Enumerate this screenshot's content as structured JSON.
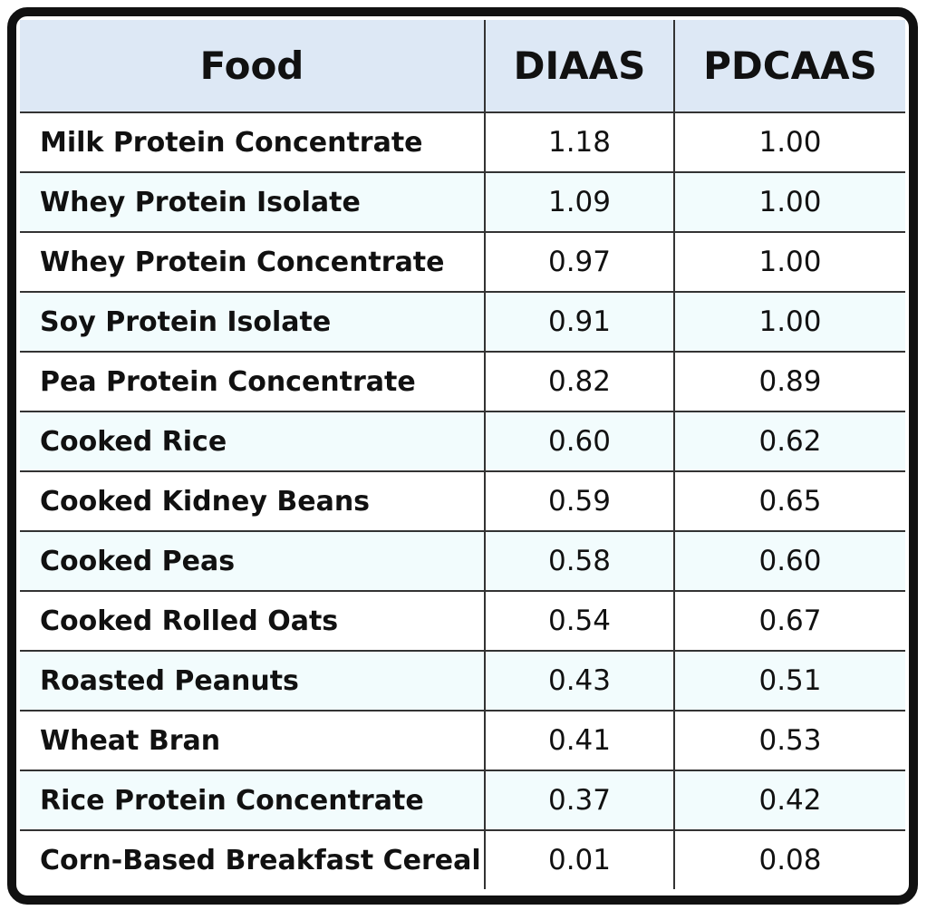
{
  "table": {
    "header": [
      "Food",
      "DIAAS",
      "PDCAAS"
    ],
    "rows": [
      [
        "Milk Protein Concentrate",
        "1.18",
        "1.00"
      ],
      [
        "Whey Protein Isolate",
        "1.09",
        "1.00"
      ],
      [
        "Whey Protein Concentrate",
        "0.97",
        "1.00"
      ],
      [
        "Soy Protein Isolate",
        "0.91",
        "1.00"
      ],
      [
        "Pea Protein Concentrate",
        "0.82",
        "0.89"
      ],
      [
        "Cooked Rice",
        "0.60",
        "0.62"
      ],
      [
        "Cooked Kidney Beans",
        "0.59",
        "0.65"
      ],
      [
        "Cooked Peas",
        "0.58",
        "0.60"
      ],
      [
        "Cooked Rolled Oats",
        "0.54",
        "0.67"
      ],
      [
        "Roasted Peanuts",
        "0.43",
        "0.51"
      ],
      [
        "Wheat Bran",
        "0.41",
        "0.53"
      ],
      [
        "Rice Protein Concentrate",
        "0.37",
        "0.42"
      ],
      [
        "Corn-Based Breakfast Cereal",
        "0.01",
        "0.08"
      ]
    ]
  }
}
